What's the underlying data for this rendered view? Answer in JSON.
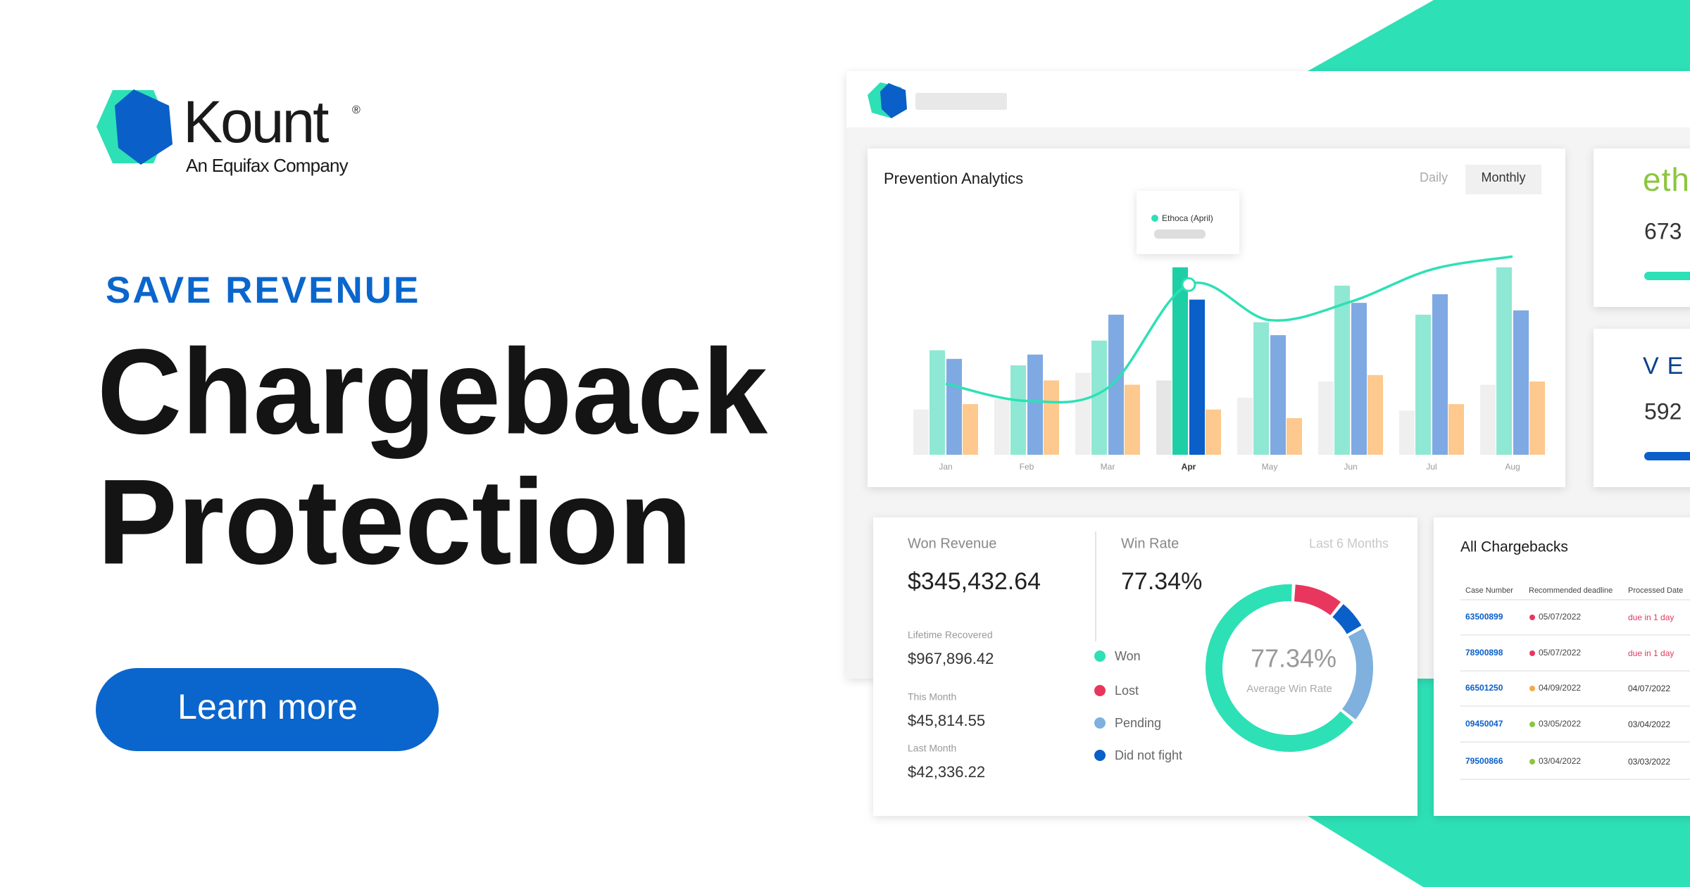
{
  "brand": {
    "name": "Kount",
    "registered": "®",
    "tagline": "An Equifax Company"
  },
  "hero": {
    "eyebrow": "SAVE REVENUE",
    "title_lines": [
      "Chargeback",
      "Protection"
    ],
    "button": "Learn more"
  },
  "analytics": {
    "title": "Prevention Analytics",
    "tabs": [
      "Daily",
      "Monthly"
    ],
    "active_tab": "Monthly"
  },
  "chart_data": {
    "type": "bar",
    "categories": [
      "Jan",
      "Feb",
      "Mar",
      "Apr",
      "May",
      "Jun",
      "Jul",
      "Aug"
    ],
    "highlight": "Apr",
    "ylim": [
      0,
      230
    ],
    "series": [
      {
        "color": "#efefef",
        "highlight_color": "#e6e6e6",
        "values": [
          42,
          52,
          76,
          69,
          53,
          68,
          41,
          65
        ]
      },
      {
        "color": "#8fe8d3",
        "highlight_color": "#1ecfa6",
        "values": [
          97,
          83,
          106,
          174,
          123,
          157,
          130,
          174
        ]
      },
      {
        "color": "#7fa9e2",
        "highlight_color": "#0a5fc9",
        "values": [
          89,
          93,
          130,
          144,
          111,
          141,
          149,
          134
        ]
      },
      {
        "color": "#fdc98e",
        "highlight_color": "#fdc98e",
        "values": [
          47,
          69,
          65,
          42,
          34,
          74,
          47,
          68
        ]
      }
    ],
    "line": {
      "color": "#2ee0b5",
      "values": [
        66,
        50,
        62,
        158,
        125,
        142,
        172,
        184
      ]
    },
    "tooltip": "Ethoca (April)"
  },
  "partners": [
    {
      "label": "eth",
      "value": 673,
      "color": "#8cc63f",
      "bar_color": "#2ee0b5"
    },
    {
      "label": "VE",
      "value": 592,
      "color": "#0b3f8c",
      "bar_color": "#0a5fc9"
    }
  ],
  "revenue": {
    "won_label": "Won Revenue",
    "won_value": "$345,432.64",
    "rate_label": "Win Rate",
    "rate_value": "77.34%",
    "period": "Last 6 Months",
    "stats": [
      {
        "label": "Lifetime Recovered",
        "value": "$967,896.42"
      },
      {
        "label": "This Month",
        "value": "$45,814.55"
      },
      {
        "label": "Last Month",
        "value": "$42,336.22"
      }
    ],
    "donut": {
      "center_value": "77.34%",
      "center_label": "Average Win Rate",
      "segments": [
        {
          "name": "Won",
          "color": "#2ee0b5",
          "value": 65
        },
        {
          "name": "Lost",
          "color": "#e8365f",
          "value": 10
        },
        {
          "name": "Pending",
          "color": "#7fb0de",
          "value": 19
        },
        {
          "name": "Did not fight",
          "color": "#0a5fc9",
          "value": 6
        }
      ]
    }
  },
  "chargebacks": {
    "title": "All Chargebacks",
    "headers": [
      "Case Number",
      "Recommended deadline",
      "Processed Date"
    ],
    "rows": [
      {
        "case": "63500899",
        "deadline": "05/07/2022",
        "dot": "#e8365f",
        "processed": "due in 1 day",
        "processed_color": "#e8365f"
      },
      {
        "case": "78900898",
        "deadline": "05/07/2022",
        "dot": "#e8365f",
        "processed": "due in 1 day",
        "processed_color": "#e8365f"
      },
      {
        "case": "66501250",
        "deadline": "04/09/2022",
        "dot": "#f5a84a",
        "processed": "04/07/2022",
        "processed_color": "#333333"
      },
      {
        "case": "09450047",
        "deadline": "03/05/2022",
        "dot": "#8cc63f",
        "processed": "03/04/2022",
        "processed_color": "#333333"
      },
      {
        "case": "79500866",
        "deadline": "03/04/2022",
        "dot": "#8cc63f",
        "processed": "03/03/2022",
        "processed_color": "#333333"
      }
    ]
  }
}
